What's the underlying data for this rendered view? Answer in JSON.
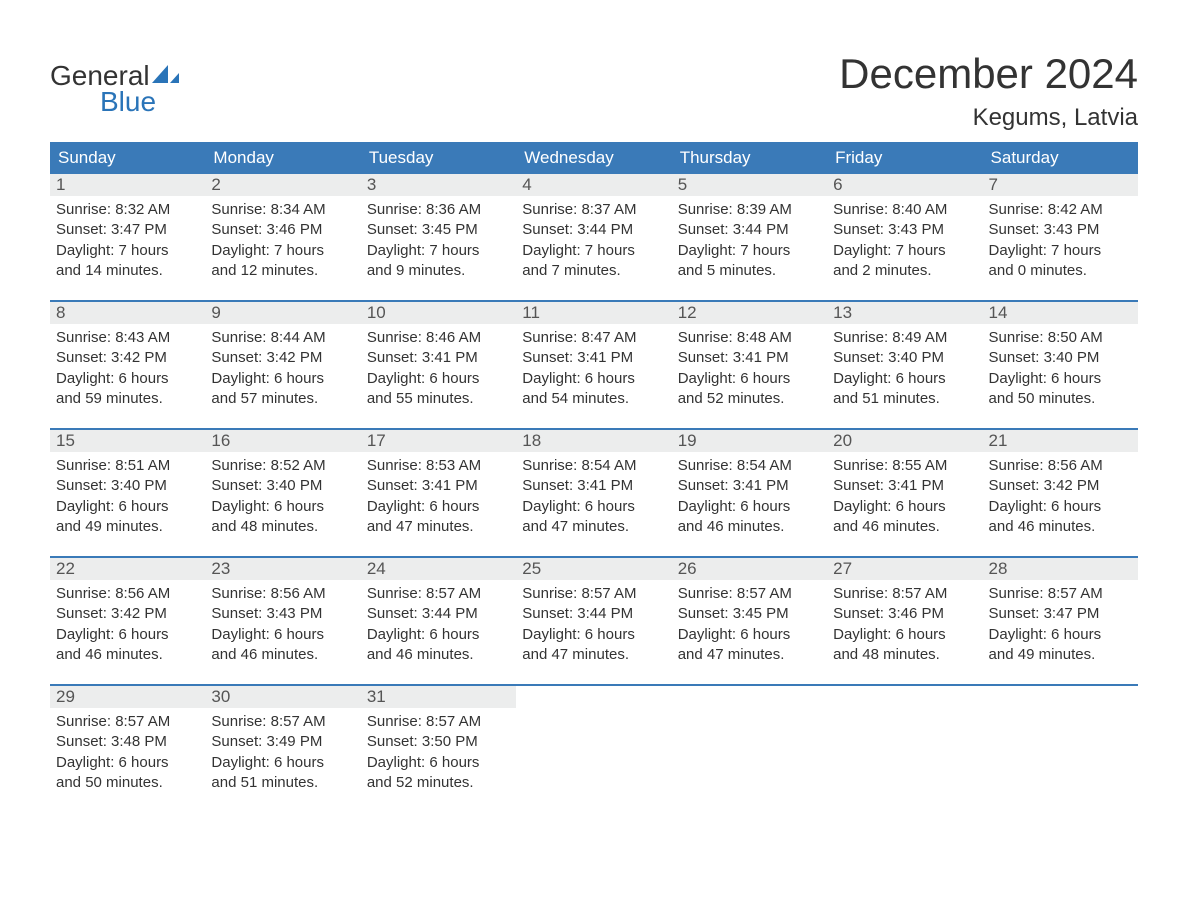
{
  "logo": {
    "text1": "General",
    "text2": "Blue",
    "icon_color": "#2a74b8"
  },
  "header": {
    "month_title": "December 2024",
    "location": "Kegums, Latvia"
  },
  "colors": {
    "header_bg": "#3a7ab8",
    "header_text": "#ffffff",
    "daynum_bg": "#eceded",
    "body_text": "#333333",
    "accent": "#2a74b8",
    "page_bg": "#ffffff"
  },
  "day_names": [
    "Sunday",
    "Monday",
    "Tuesday",
    "Wednesday",
    "Thursday",
    "Friday",
    "Saturday"
  ],
  "days": [
    {
      "n": "1",
      "sunrise": "8:32 AM",
      "sunset": "3:47 PM",
      "dl1": "7 hours",
      "dl2": "and 14 minutes."
    },
    {
      "n": "2",
      "sunrise": "8:34 AM",
      "sunset": "3:46 PM",
      "dl1": "7 hours",
      "dl2": "and 12 minutes."
    },
    {
      "n": "3",
      "sunrise": "8:36 AM",
      "sunset": "3:45 PM",
      "dl1": "7 hours",
      "dl2": "and 9 minutes."
    },
    {
      "n": "4",
      "sunrise": "8:37 AM",
      "sunset": "3:44 PM",
      "dl1": "7 hours",
      "dl2": "and 7 minutes."
    },
    {
      "n": "5",
      "sunrise": "8:39 AM",
      "sunset": "3:44 PM",
      "dl1": "7 hours",
      "dl2": "and 5 minutes."
    },
    {
      "n": "6",
      "sunrise": "8:40 AM",
      "sunset": "3:43 PM",
      "dl1": "7 hours",
      "dl2": "and 2 minutes."
    },
    {
      "n": "7",
      "sunrise": "8:42 AM",
      "sunset": "3:43 PM",
      "dl1": "7 hours",
      "dl2": "and 0 minutes."
    },
    {
      "n": "8",
      "sunrise": "8:43 AM",
      "sunset": "3:42 PM",
      "dl1": "6 hours",
      "dl2": "and 59 minutes."
    },
    {
      "n": "9",
      "sunrise": "8:44 AM",
      "sunset": "3:42 PM",
      "dl1": "6 hours",
      "dl2": "and 57 minutes."
    },
    {
      "n": "10",
      "sunrise": "8:46 AM",
      "sunset": "3:41 PM",
      "dl1": "6 hours",
      "dl2": "and 55 minutes."
    },
    {
      "n": "11",
      "sunrise": "8:47 AM",
      "sunset": "3:41 PM",
      "dl1": "6 hours",
      "dl2": "and 54 minutes."
    },
    {
      "n": "12",
      "sunrise": "8:48 AM",
      "sunset": "3:41 PM",
      "dl1": "6 hours",
      "dl2": "and 52 minutes."
    },
    {
      "n": "13",
      "sunrise": "8:49 AM",
      "sunset": "3:40 PM",
      "dl1": "6 hours",
      "dl2": "and 51 minutes."
    },
    {
      "n": "14",
      "sunrise": "8:50 AM",
      "sunset": "3:40 PM",
      "dl1": "6 hours",
      "dl2": "and 50 minutes."
    },
    {
      "n": "15",
      "sunrise": "8:51 AM",
      "sunset": "3:40 PM",
      "dl1": "6 hours",
      "dl2": "and 49 minutes."
    },
    {
      "n": "16",
      "sunrise": "8:52 AM",
      "sunset": "3:40 PM",
      "dl1": "6 hours",
      "dl2": "and 48 minutes."
    },
    {
      "n": "17",
      "sunrise": "8:53 AM",
      "sunset": "3:41 PM",
      "dl1": "6 hours",
      "dl2": "and 47 minutes."
    },
    {
      "n": "18",
      "sunrise": "8:54 AM",
      "sunset": "3:41 PM",
      "dl1": "6 hours",
      "dl2": "and 47 minutes."
    },
    {
      "n": "19",
      "sunrise": "8:54 AM",
      "sunset": "3:41 PM",
      "dl1": "6 hours",
      "dl2": "and 46 minutes."
    },
    {
      "n": "20",
      "sunrise": "8:55 AM",
      "sunset": "3:41 PM",
      "dl1": "6 hours",
      "dl2": "and 46 minutes."
    },
    {
      "n": "21",
      "sunrise": "8:56 AM",
      "sunset": "3:42 PM",
      "dl1": "6 hours",
      "dl2": "and 46 minutes."
    },
    {
      "n": "22",
      "sunrise": "8:56 AM",
      "sunset": "3:42 PM",
      "dl1": "6 hours",
      "dl2": "and 46 minutes."
    },
    {
      "n": "23",
      "sunrise": "8:56 AM",
      "sunset": "3:43 PM",
      "dl1": "6 hours",
      "dl2": "and 46 minutes."
    },
    {
      "n": "24",
      "sunrise": "8:57 AM",
      "sunset": "3:44 PM",
      "dl1": "6 hours",
      "dl2": "and 46 minutes."
    },
    {
      "n": "25",
      "sunrise": "8:57 AM",
      "sunset": "3:44 PM",
      "dl1": "6 hours",
      "dl2": "and 47 minutes."
    },
    {
      "n": "26",
      "sunrise": "8:57 AM",
      "sunset": "3:45 PM",
      "dl1": "6 hours",
      "dl2": "and 47 minutes."
    },
    {
      "n": "27",
      "sunrise": "8:57 AM",
      "sunset": "3:46 PM",
      "dl1": "6 hours",
      "dl2": "and 48 minutes."
    },
    {
      "n": "28",
      "sunrise": "8:57 AM",
      "sunset": "3:47 PM",
      "dl1": "6 hours",
      "dl2": "and 49 minutes."
    },
    {
      "n": "29",
      "sunrise": "8:57 AM",
      "sunset": "3:48 PM",
      "dl1": "6 hours",
      "dl2": "and 50 minutes."
    },
    {
      "n": "30",
      "sunrise": "8:57 AM",
      "sunset": "3:49 PM",
      "dl1": "6 hours",
      "dl2": "and 51 minutes."
    },
    {
      "n": "31",
      "sunrise": "8:57 AM",
      "sunset": "3:50 PM",
      "dl1": "6 hours",
      "dl2": "and 52 minutes."
    }
  ],
  "labels": {
    "sunrise": "Sunrise: ",
    "sunset": "Sunset: ",
    "daylight": "Daylight: "
  }
}
